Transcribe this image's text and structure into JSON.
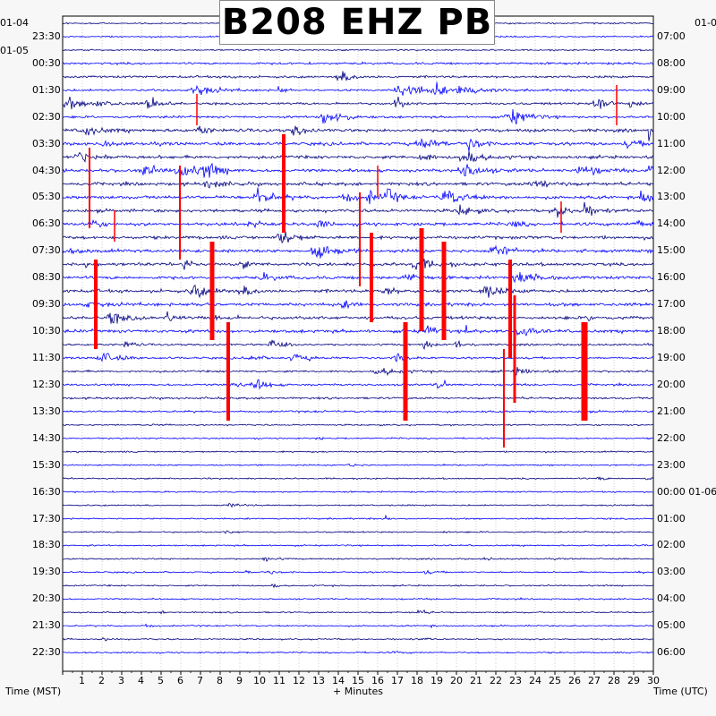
{
  "chart_data": {
    "type": "line",
    "title": "B208 EHZ PB",
    "xlabel": "+ Minutes",
    "left_axis_label": "Time (MST)",
    "right_axis_label": "Time (UTC)",
    "xlim": [
      0,
      30
    ],
    "x_ticks": [
      "1",
      "2",
      "3",
      "4",
      "5",
      "6",
      "7",
      "8",
      "9",
      "10",
      "11",
      "12",
      "13",
      "14",
      "15",
      "16",
      "17",
      "18",
      "19",
      "20",
      "21",
      "22",
      "23",
      "24",
      "25",
      "26",
      "27",
      "28",
      "29",
      "30"
    ],
    "left_dates": [
      "01-04",
      "01-05"
    ],
    "left_times": [
      "23:30",
      "00:30",
      "01:30",
      "02:30",
      "03:30",
      "04:30",
      "05:30",
      "06:30",
      "07:30",
      "08:30",
      "09:30",
      "10:30",
      "11:30",
      "12:30",
      "13:30",
      "14:30",
      "15:30",
      "16:30",
      "17:30",
      "18:30",
      "19:30",
      "20:30",
      "21:30",
      "22:30"
    ],
    "right_times": [
      "07:00",
      "08:00",
      "09:00",
      "10:00",
      "11:00",
      "12:00",
      "13:00",
      "14:00",
      "15:00",
      "16:00",
      "17:00",
      "18:00",
      "19:00",
      "20:00",
      "21:00",
      "22:00",
      "23:00",
      "00:00 01-06",
      "01:00",
      "02:00",
      "03:00",
      "04:00",
      "05:00",
      "06:00"
    ],
    "right_top_date": "01-0",
    "trace_count": 48,
    "trace_colors": [
      "#000080",
      "#0000ff"
    ],
    "clip_color": "#ff0000",
    "grid": true
  }
}
